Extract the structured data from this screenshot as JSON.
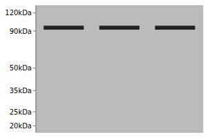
{
  "chart_data": {
    "type": "gel",
    "categories": [
      null,
      null,
      null
    ],
    "values": [
      95,
      95,
      95
    ],
    "errors": [
      3,
      3,
      3
    ],
    "color": "#222222",
    "log": "y",
    "ylim": [
      18,
      135
    ],
    "yticks": [
      {
        "value": 120,
        "label": "120kDa"
      },
      {
        "value": 90,
        "label": "90kDa"
      },
      {
        "value": 50,
        "label": "50kDa"
      },
      {
        "value": 35,
        "label": "35kDa"
      },
      {
        "value": 25,
        "label": "25kDa"
      },
      {
        "value": 20,
        "label": "20kDa"
      }
    ],
    "grid": false
  }
}
